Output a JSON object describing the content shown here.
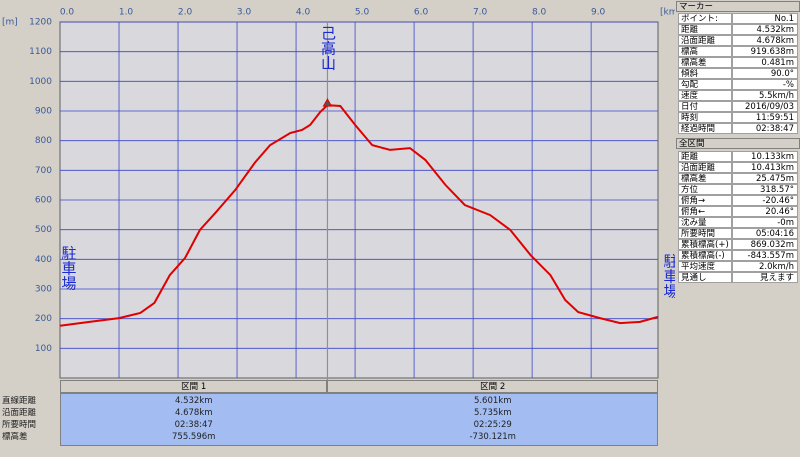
{
  "chart_data": {
    "type": "line",
    "x_label": "[km]",
    "y_label": "[m]",
    "x": [
      0,
      0.5,
      1.0,
      1.36,
      1.6,
      1.86,
      2.12,
      2.37,
      2.63,
      2.97,
      3.3,
      3.56,
      3.9,
      4.1,
      4.24,
      4.41,
      4.532,
      4.75,
      5.0,
      5.29,
      5.59,
      5.93,
      6.19,
      6.53,
      6.86,
      7.29,
      7.63,
      7.97,
      8.31,
      8.56,
      8.78,
      9.15,
      9.49,
      9.83,
      10.133
    ],
    "values": [
      176,
      189,
      202,
      219,
      253,
      347,
      405,
      499,
      556,
      634,
      725,
      785,
      826,
      836,
      853,
      897,
      920,
      917,
      853,
      785,
      769,
      775,
      735,
      651,
      583,
      549,
      499,
      415,
      347,
      263,
      222,
      202,
      185,
      189,
      206
    ],
    "color": "#e00000",
    "xlim": [
      0,
      10.133
    ],
    "ylim": [
      0,
      1200
    ],
    "xticks": [
      {
        "value": 0,
        "label": "0.0"
      },
      {
        "value": 1,
        "label": "1.0"
      },
      {
        "value": 2,
        "label": "2.0"
      },
      {
        "value": 3,
        "label": "3.0"
      },
      {
        "value": 4,
        "label": "4.0"
      },
      {
        "value": 5,
        "label": "5.0"
      },
      {
        "value": 6,
        "label": "6.0"
      },
      {
        "value": 7,
        "label": "7.0"
      },
      {
        "value": 8,
        "label": "8.0"
      },
      {
        "value": 9,
        "label": "9.0"
      }
    ],
    "yticks": [
      100,
      200,
      300,
      400,
      500,
      600,
      700,
      800,
      900,
      1000,
      1100,
      1200
    ],
    "grid": true,
    "marker_x": 4.532,
    "annotations": [
      "己高山",
      "駐車場",
      "駐車場"
    ]
  },
  "marker_panel": {
    "title": "マーカー",
    "rows": [
      [
        "ポイント:",
        "No.1"
      ],
      [
        "距離",
        "4.532km"
      ],
      [
        "沿面距離",
        "4.678km"
      ],
      [
        "標高",
        "919.638m"
      ],
      [
        "標高差",
        "0.481m"
      ],
      [
        "傾斜",
        "90.0°"
      ],
      [
        "勾配",
        "-%"
      ],
      [
        "速度",
        "5.5km/h"
      ],
      [
        "日付",
        "2016/09/03"
      ],
      [
        "時刻",
        "11:59:51"
      ],
      [
        "経過時間",
        "02:38:47"
      ]
    ]
  },
  "section_panel": {
    "title": "全区間",
    "rows": [
      [
        "距離",
        "10.133km"
      ],
      [
        "沿面距離",
        "10.413km"
      ],
      [
        "標高差",
        "25.475m"
      ],
      [
        "方位",
        "318.57°"
      ],
      [
        "俯角→",
        "-20.46°"
      ],
      [
        "俯角←",
        "20.46°"
      ],
      [
        "沈み量",
        "-0m"
      ],
      [
        "所要時間",
        "05:04:16"
      ],
      [
        "累積標高(+)",
        "869.032m"
      ],
      [
        "累積標高(-)",
        "-843.557m"
      ],
      [
        "平均速度",
        "2.0km/h"
      ],
      [
        "見通し",
        "見えます"
      ]
    ]
  },
  "segment_table": {
    "headers": [
      "区間 1",
      "区間 2"
    ],
    "row_labels": [
      "直線距離",
      "沿面距離",
      "所要時間",
      "標高差"
    ],
    "rows": [
      [
        "4.532km",
        "5.601km"
      ],
      [
        "4.678km",
        "5.735km"
      ],
      [
        "02:38:47",
        "02:25:29"
      ],
      [
        "755.596m",
        "-730.121m"
      ]
    ]
  }
}
